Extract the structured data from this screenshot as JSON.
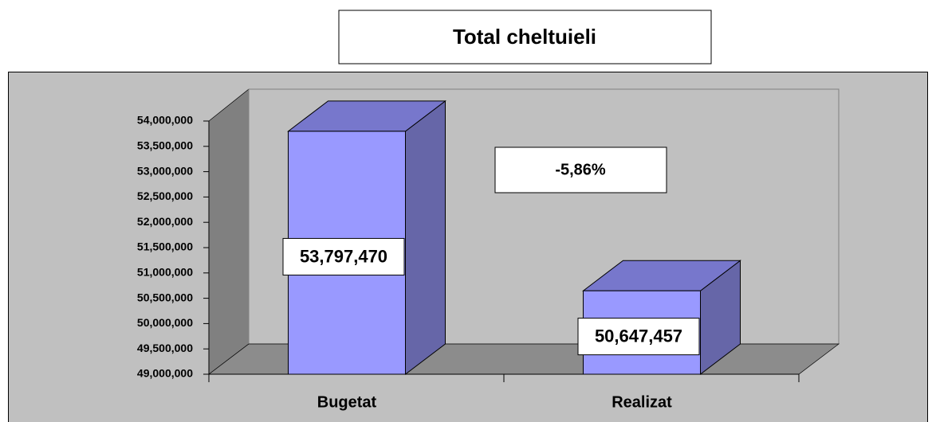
{
  "chart_data": {
    "type": "bar",
    "title": "Total cheltuieli",
    "categories": [
      "Bugetat",
      "Realizat"
    ],
    "values": [
      53797470,
      50647457
    ],
    "value_labels": [
      "53,797,470",
      "50,647,457"
    ],
    "annotation": "-5,86%",
    "color": "#9999ff",
    "ylim": [
      49000000,
      54000000
    ],
    "yticks": [
      {
        "value": 49000000,
        "label": "49,000,000"
      },
      {
        "value": 49500000,
        "label": "49,500,000"
      },
      {
        "value": 50000000,
        "label": "50,000,000"
      },
      {
        "value": 50500000,
        "label": "50,500,000"
      },
      {
        "value": 51000000,
        "label": "51,000,000"
      },
      {
        "value": 51500000,
        "label": "51,500,000"
      },
      {
        "value": 52000000,
        "label": "52,000,000"
      },
      {
        "value": 52500000,
        "label": "52,500,000"
      },
      {
        "value": 53000000,
        "label": "53,000,000"
      },
      {
        "value": 53500000,
        "label": "53,500,000"
      },
      {
        "value": 54000000,
        "label": "54,000,000"
      }
    ]
  }
}
